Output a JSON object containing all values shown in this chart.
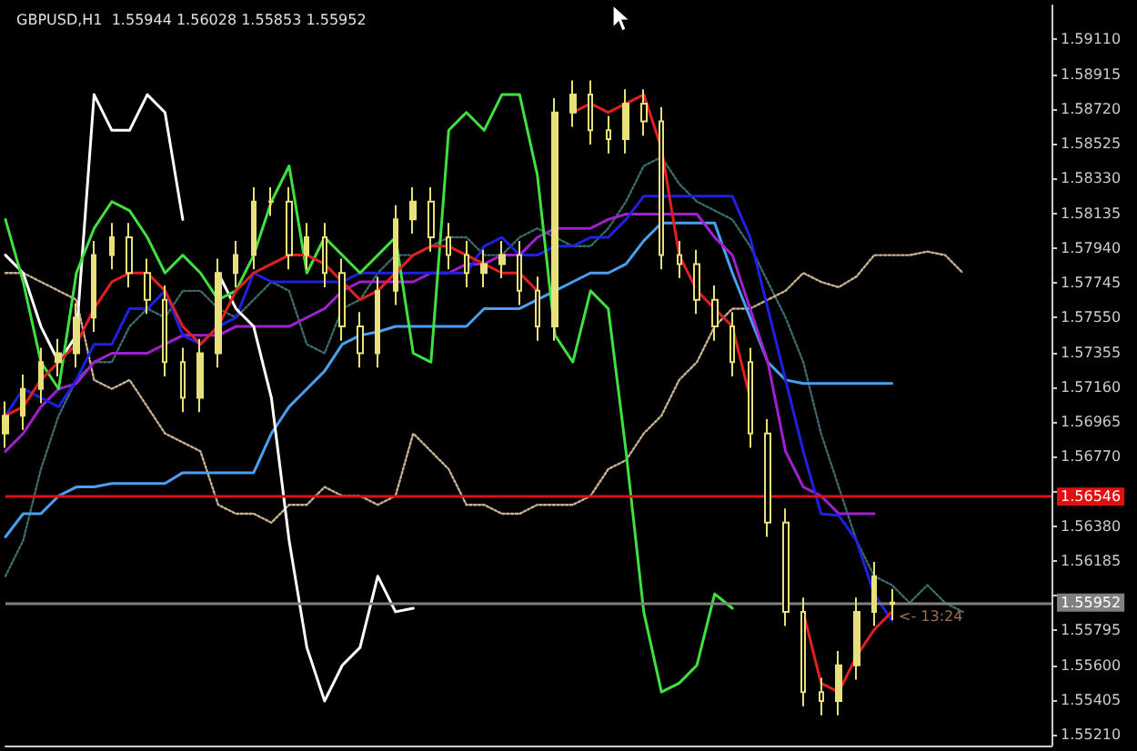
{
  "chart_data": {
    "type": "candlestick",
    "title": "GBPUSD,H1  1.55944 1.56028 1.55853 1.55952",
    "annotations": [
      "<- 13:24"
    ],
    "categories": [
      null,
      null,
      null,
      null,
      null,
      null,
      null,
      null,
      null,
      null,
      null,
      null,
      null,
      null,
      null,
      null,
      null,
      null,
      null,
      null,
      null,
      null,
      null,
      null,
      null,
      null,
      null,
      null,
      null,
      null,
      null,
      null,
      null,
      null,
      null,
      null,
      null,
      null,
      null,
      null,
      null,
      null,
      null,
      null,
      null,
      null,
      null,
      null,
      null,
      null,
      null,
      null,
      null,
      null,
      null,
      null,
      null,
      null,
      null,
      null
    ],
    "color": "#e8e07a",
    "ohlc": [
      [
        1.569,
        1.5708,
        1.5682,
        1.57
      ],
      [
        1.57,
        1.5723,
        1.5692,
        1.5715
      ],
      [
        1.5715,
        1.5738,
        1.5707,
        1.573
      ],
      [
        1.573,
        1.5743,
        1.5722,
        1.5735
      ],
      [
        1.5735,
        1.5763,
        1.5727,
        1.5755
      ],
      [
        1.5755,
        1.5798,
        1.5747,
        1.579
      ],
      [
        1.579,
        1.5808,
        1.5782,
        1.58
      ],
      [
        1.58,
        1.5808,
        1.5772,
        1.578
      ],
      [
        1.578,
        1.5788,
        1.5757,
        1.5765
      ],
      [
        1.5765,
        1.5773,
        1.5722,
        1.573
      ],
      [
        1.573,
        1.5738,
        1.5702,
        1.571
      ],
      [
        1.571,
        1.5743,
        1.5702,
        1.5735
      ],
      [
        1.5735,
        1.5788,
        1.5727,
        1.578
      ],
      [
        1.578,
        1.5798,
        1.5772,
        1.579
      ],
      [
        1.579,
        1.5828,
        1.5782,
        1.582
      ],
      [
        1.582,
        1.5828,
        1.5812,
        1.582
      ],
      [
        1.582,
        1.5828,
        1.5782,
        1.579
      ],
      [
        1.579,
        1.5808,
        1.5782,
        1.58
      ],
      [
        1.58,
        1.5808,
        1.5772,
        1.578
      ],
      [
        1.578,
        1.5788,
        1.5742,
        1.575
      ],
      [
        1.575,
        1.5758,
        1.5727,
        1.5735
      ],
      [
        1.5735,
        1.5778,
        1.5727,
        1.577
      ],
      [
        1.577,
        1.5818,
        1.5762,
        1.581
      ],
      [
        1.581,
        1.5828,
        1.5802,
        1.582
      ],
      [
        1.582,
        1.5828,
        1.5792,
        1.58
      ],
      [
        1.58,
        1.5808,
        1.5782,
        1.579
      ],
      [
        1.579,
        1.5798,
        1.5772,
        1.578
      ],
      [
        1.578,
        1.5793,
        1.5772,
        1.5785
      ],
      [
        1.5785,
        1.5798,
        1.5777,
        1.579
      ],
      [
        1.579,
        1.5798,
        1.5762,
        1.577
      ],
      [
        1.577,
        1.5778,
        1.5742,
        1.575
      ],
      [
        1.575,
        1.5878,
        1.5742,
        1.587
      ],
      [
        1.587,
        1.5888,
        1.5862,
        1.588
      ],
      [
        1.588,
        1.5888,
        1.5852,
        1.586
      ],
      [
        1.586,
        1.5868,
        1.5847,
        1.5855
      ],
      [
        1.5855,
        1.5883,
        1.5847,
        1.5875
      ],
      [
        1.5875,
        1.5883,
        1.5857,
        1.5865
      ],
      [
        1.5865,
        1.5873,
        1.5782,
        1.579
      ],
      [
        1.579,
        1.5798,
        1.5777,
        1.5785
      ],
      [
        1.5785,
        1.5793,
        1.5757,
        1.5765
      ],
      [
        1.5765,
        1.5773,
        1.5742,
        1.575
      ],
      [
        1.575,
        1.5758,
        1.5722,
        1.573
      ],
      [
        1.573,
        1.5738,
        1.5682,
        1.569
      ],
      [
        1.569,
        1.5698,
        1.5632,
        1.564
      ],
      [
        1.564,
        1.5648,
        1.5582,
        1.559
      ],
      [
        1.559,
        1.5598,
        1.5537,
        1.5545
      ],
      [
        1.5545,
        1.5553,
        1.5532,
        1.554
      ],
      [
        1.554,
        1.5568,
        1.5532,
        1.556
      ],
      [
        1.556,
        1.5598,
        1.5552,
        1.559
      ],
      [
        1.559,
        1.5618,
        1.5582,
        1.561
      ],
      [
        1.55944,
        1.56028,
        1.55853,
        1.55952
      ],
      null,
      null,
      null,
      null,
      null,
      null,
      null,
      null,
      null
    ],
    "series": [
      {
        "type": "line",
        "color": "#3a6a6a",
        "line_style": "dotted",
        "values": [
          1.561,
          1.563,
          1.567,
          1.57,
          1.572,
          1.573,
          1.573,
          1.575,
          1.576,
          1.5755,
          1.577,
          1.577,
          1.576,
          1.5755,
          1.5765,
          1.5775,
          1.577,
          1.574,
          1.5735,
          1.576,
          1.5765,
          1.578,
          1.579,
          1.579,
          1.5795,
          1.58,
          1.58,
          1.579,
          1.579,
          1.58,
          1.5805,
          1.58,
          1.5795,
          1.5795,
          1.5805,
          1.582,
          1.584,
          1.5845,
          1.583,
          1.582,
          1.5815,
          1.581,
          1.5795,
          1.5775,
          1.5755,
          1.573,
          1.569,
          1.566,
          1.563,
          1.561,
          1.5605,
          1.5595,
          1.5605,
          1.5595,
          1.559,
          null,
          null,
          null,
          null,
          null
        ]
      },
      {
        "type": "line",
        "color": "#c8b090",
        "line_style": "dotted",
        "values": [
          1.578,
          1.578,
          1.5775,
          1.577,
          1.5765,
          1.572,
          1.5715,
          1.572,
          1.5705,
          1.569,
          1.5685,
          1.568,
          1.565,
          1.5645,
          1.5645,
          1.564,
          1.565,
          1.565,
          1.566,
          1.5655,
          1.5655,
          1.565,
          1.5655,
          1.569,
          1.568,
          1.567,
          1.565,
          1.565,
          1.5645,
          1.5645,
          1.565,
          1.565,
          1.565,
          1.5655,
          1.567,
          1.5675,
          1.569,
          1.57,
          1.572,
          1.573,
          1.575,
          1.576,
          1.576,
          1.5765,
          1.577,
          1.578,
          1.5775,
          1.5772,
          1.5778,
          1.579,
          1.579,
          1.579,
          1.5792,
          1.579,
          1.578,
          null,
          null,
          null,
          null,
          null
        ]
      },
      {
        "type": "line",
        "color": "#4aa0f0",
        "values": [
          1.5632,
          1.5645,
          1.5645,
          1.5655,
          1.566,
          1.566,
          1.5662,
          1.5662,
          1.5662,
          1.5662,
          1.5668,
          1.5668,
          1.5668,
          1.5668,
          1.5668,
          1.569,
          1.5705,
          1.5715,
          1.5725,
          1.574,
          1.5745,
          1.5747,
          1.575,
          1.575,
          1.575,
          1.575,
          1.575,
          1.576,
          1.576,
          1.576,
          1.5765,
          1.577,
          1.5775,
          1.578,
          1.578,
          1.5785,
          1.5798,
          1.5808,
          1.5808,
          1.5808,
          1.5808,
          1.578,
          1.5755,
          1.573,
          1.572,
          1.5718,
          1.5718,
          1.5718,
          1.5718,
          1.5718,
          1.5718,
          null,
          null,
          null,
          null,
          null,
          null,
          null,
          null,
          null
        ]
      },
      {
        "type": "line",
        "color": "#a020d0",
        "values": [
          1.568,
          1.569,
          1.5705,
          1.5715,
          1.5718,
          1.573,
          1.5735,
          1.5735,
          1.5735,
          1.574,
          1.5745,
          1.5745,
          1.5745,
          1.575,
          1.575,
          1.575,
          1.575,
          1.5755,
          1.576,
          1.577,
          1.5775,
          1.5775,
          1.5775,
          1.5775,
          1.578,
          1.578,
          1.5785,
          1.5785,
          1.579,
          1.579,
          1.58,
          1.5805,
          1.5805,
          1.5805,
          1.581,
          1.5813,
          1.5813,
          1.5813,
          1.5813,
          1.5813,
          1.58,
          1.579,
          1.576,
          1.573,
          1.568,
          1.566,
          1.5655,
          1.5645,
          1.5645,
          1.5645,
          null,
          null,
          null,
          null,
          null,
          null,
          null,
          null,
          null,
          null
        ]
      },
      {
        "type": "line",
        "color": "#2020e0",
        "values": [
          1.57,
          1.5715,
          1.571,
          1.5705,
          1.572,
          1.574,
          1.574,
          1.576,
          1.576,
          1.577,
          1.5745,
          1.574,
          1.575,
          1.5755,
          1.578,
          1.5775,
          1.5775,
          1.5775,
          1.5775,
          1.5775,
          1.578,
          1.578,
          1.578,
          1.578,
          1.578,
          1.578,
          1.578,
          1.5795,
          1.58,
          1.579,
          1.579,
          1.5795,
          1.5795,
          1.58,
          1.58,
          1.581,
          1.5823,
          1.5823,
          1.5823,
          1.5823,
          1.5823,
          1.5823,
          1.58,
          1.576,
          1.572,
          1.568,
          1.5645,
          1.5644,
          1.563,
          1.56,
          1.5585,
          null,
          null,
          null,
          null,
          null,
          null,
          null,
          null,
          null
        ]
      },
      {
        "type": "line",
        "color": "#ffffff",
        "values": [
          1.579,
          1.578,
          1.575,
          1.573,
          1.5745,
          1.588,
          1.586,
          1.586,
          1.588,
          1.587,
          1.581,
          null,
          1.578,
          1.576,
          1.575,
          1.571,
          1.563,
          1.557,
          1.554,
          1.556,
          1.557,
          1.561,
          1.559,
          1.5592,
          null,
          null,
          null,
          null,
          null,
          null,
          null,
          null,
          null,
          null,
          null,
          null,
          null,
          null,
          null,
          null,
          null,
          null,
          null,
          null,
          null,
          null,
          null,
          null,
          null,
          null,
          null,
          null,
          null,
          null,
          null,
          null,
          null,
          null,
          null,
          null
        ]
      },
      {
        "type": "line",
        "color": "#40e040",
        "values": [
          1.581,
          1.5775,
          1.573,
          1.5715,
          1.578,
          1.5805,
          1.582,
          1.5815,
          1.58,
          1.578,
          1.579,
          1.578,
          1.5765,
          1.577,
          1.579,
          1.582,
          1.584,
          1.578,
          1.58,
          1.579,
          1.578,
          1.579,
          1.58,
          1.5735,
          1.573,
          1.586,
          1.587,
          1.586,
          1.588,
          1.588,
          1.5835,
          1.5745,
          1.573,
          1.577,
          1.576,
          1.568,
          1.559,
          1.5545,
          1.555,
          1.556,
          1.56,
          1.5592,
          null,
          null,
          null,
          null,
          null,
          null,
          null,
          null,
          null,
          null,
          null,
          null,
          null,
          null,
          null,
          null,
          null,
          null
        ]
      },
      {
        "type": "line",
        "color": "#e02020",
        "values": [
          1.57,
          1.5705,
          1.572,
          1.573,
          1.574,
          1.576,
          1.5775,
          1.578,
          1.578,
          1.577,
          1.575,
          1.574,
          1.575,
          1.577,
          1.578,
          1.5785,
          1.579,
          1.579,
          1.5785,
          1.5775,
          1.5765,
          1.577,
          1.578,
          1.579,
          1.5795,
          1.5795,
          1.579,
          1.5785,
          1.578,
          1.578,
          1.577,
          null,
          1.587,
          1.5875,
          1.587,
          1.5875,
          1.588,
          1.585,
          1.579,
          1.577,
          1.576,
          1.575,
          1.571,
          null,
          null,
          1.559,
          1.555,
          1.5545,
          1.5565,
          1.558,
          1.559,
          null,
          null,
          null,
          null,
          null,
          null,
          null,
          null,
          null
        ]
      }
    ],
    "ylim": [
      1.5515,
      1.593
    ],
    "yticks": [
      {
        "value": 1.5911,
        "label": "1.59110"
      },
      {
        "value": 1.58915,
        "label": "1.58915"
      },
      {
        "value": 1.5872,
        "label": "1.58720"
      },
      {
        "value": 1.58525,
        "label": "1.58525"
      },
      {
        "value": 1.5833,
        "label": "1.58330"
      },
      {
        "value": 1.58135,
        "label": "1.58135"
      },
      {
        "value": 1.5794,
        "label": "1.57940"
      },
      {
        "value": 1.57745,
        "label": "1.57745"
      },
      {
        "value": 1.5755,
        "label": "1.57550"
      },
      {
        "value": 1.57355,
        "label": "1.57355"
      },
      {
        "value": 1.5716,
        "label": "1.57160"
      },
      {
        "value": 1.56965,
        "label": "1.56965"
      },
      {
        "value": 1.5677,
        "label": "1.56770"
      },
      {
        "value": 1.56575,
        "label": null
      },
      {
        "value": 1.5638,
        "label": "1.56380"
      },
      {
        "value": 1.56185,
        "label": "1.56185"
      },
      {
        "value": 1.5599,
        "label": null
      },
      {
        "value": 1.55795,
        "label": "1.55795"
      },
      {
        "value": 1.556,
        "label": "1.55600"
      },
      {
        "value": 1.55405,
        "label": "1.55405"
      },
      {
        "value": 1.5521,
        "label": "1.55210"
      }
    ],
    "ref_lines": [
      {
        "axis": "y",
        "value": 1.56546,
        "label": "1.56546",
        "color": "#e01010"
      },
      {
        "axis": "y",
        "value": 1.55952,
        "label": "1.55952",
        "color": "#808080"
      }
    ],
    "tick_labels": "y",
    "marker": "none",
    "line_style": "solid"
  }
}
